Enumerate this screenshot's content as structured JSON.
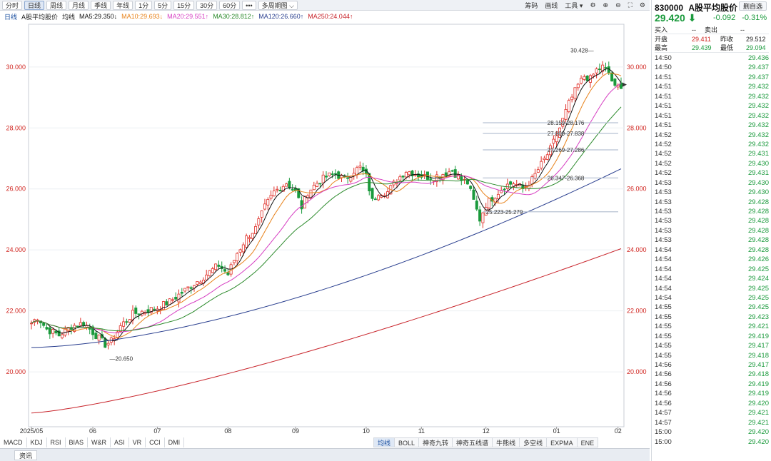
{
  "toolbar": {
    "periods": [
      "分时",
      "日线",
      "周线",
      "月线",
      "季线",
      "年线",
      "1分",
      "5分",
      "15分",
      "30分",
      "60分",
      "•••",
      "多周期图 ⌵"
    ],
    "active_index": 1,
    "right_items": [
      "筹码",
      "画线",
      "工具 ▾"
    ]
  },
  "ma_line": {
    "period": "日线",
    "name": "A股平均股价",
    "avg": "均线",
    "items": [
      {
        "text": "MA5:29.350",
        "color": "#111111",
        "arrow": "down"
      },
      {
        "text": "MA10:29.693",
        "color": "#e8821a",
        "arrow": "down"
      },
      {
        "text": "MA20:29.551",
        "color": "#d63ec2",
        "arrow": "up"
      },
      {
        "text": "MA30:28.812",
        "color": "#2b8a2b",
        "arrow": "up"
      },
      {
        "text": "MA120:26.660",
        "color": "#2a3f8f",
        "arrow": "up"
      },
      {
        "text": "MA250:24.044",
        "color": "#c8232a",
        "arrow": "up"
      }
    ]
  },
  "chart_data": {
    "type": "candlestick",
    "y_ticks": [
      "30.000",
      "28.000",
      "26.000",
      "24.000",
      "22.000",
      "20.000"
    ],
    "y_values": [
      30,
      28,
      26,
      24,
      22,
      20
    ],
    "ylim": [
      18.2,
      31.4
    ],
    "x_labels": [
      "2025/05",
      "06",
      "07",
      "08",
      "09",
      "10",
      "11",
      "12",
      "01",
      "02"
    ],
    "x_label_index": [
      0,
      20,
      41,
      64,
      86,
      109,
      127,
      148,
      171,
      191
    ],
    "annotations": [
      {
        "text": "30.428",
        "index": 184,
        "value": 30.428,
        "type": "high"
      },
      {
        "text": "20.650",
        "index": 25,
        "value": 20.65,
        "type": "low"
      },
      {
        "text": "28.159-28.176",
        "value": 28.17
      },
      {
        "text": "27.809-27.838",
        "value": 27.82
      },
      {
        "text": "27.269-27.286",
        "value": 27.28
      },
      {
        "text": "26.347-26.368",
        "value": 26.36
      },
      {
        "text": "25.223-25.279",
        "value": 25.25
      }
    ],
    "anchors": [
      [
        0,
        21.6
      ],
      [
        2,
        21.8
      ],
      [
        5,
        21.4
      ],
      [
        9,
        21.2
      ],
      [
        13,
        21.5
      ],
      [
        17,
        21.6
      ],
      [
        20,
        21.3
      ],
      [
        24,
        20.9
      ],
      [
        26,
        21.0
      ],
      [
        29,
        21.5
      ],
      [
        33,
        21.9
      ],
      [
        37,
        22.0
      ],
      [
        41,
        22.1
      ],
      [
        45,
        22.3
      ],
      [
        49,
        22.6
      ],
      [
        53,
        22.9
      ],
      [
        57,
        23.2
      ],
      [
        61,
        23.5
      ],
      [
        64,
        23.2
      ],
      [
        67,
        23.9
      ],
      [
        70,
        24.4
      ],
      [
        73,
        24.7
      ],
      [
        76,
        25.4
      ],
      [
        79,
        25.9
      ],
      [
        83,
        26.2
      ],
      [
        86,
        25.9
      ],
      [
        88,
        25.4
      ],
      [
        90,
        25.9
      ],
      [
        93,
        26.2
      ],
      [
        96,
        26.4
      ],
      [
        99,
        26.5
      ],
      [
        102,
        26.3
      ],
      [
        105,
        26.6
      ],
      [
        107,
        26.7
      ],
      [
        109,
        26.4
      ],
      [
        111,
        25.6
      ],
      [
        113,
        25.9
      ],
      [
        116,
        25.9
      ],
      [
        119,
        26.3
      ],
      [
        122,
        26.6
      ],
      [
        125,
        26.5
      ],
      [
        128,
        26.4
      ],
      [
        131,
        26.4
      ],
      [
        134,
        26.5
      ],
      [
        137,
        26.6
      ],
      [
        140,
        26.3
      ],
      [
        142,
        26.2
      ],
      [
        144,
        25.6
      ],
      [
        146,
        25.0
      ],
      [
        148,
        25.5
      ],
      [
        151,
        25.8
      ],
      [
        154,
        26.1
      ],
      [
        157,
        26.2
      ],
      [
        160,
        26.0
      ],
      [
        163,
        26.3
      ],
      [
        166,
        26.8
      ],
      [
        169,
        27.3
      ],
      [
        172,
        28.0
      ],
      [
        175,
        28.8
      ],
      [
        178,
        29.4
      ],
      [
        180,
        29.7
      ],
      [
        182,
        29.6
      ],
      [
        184,
        29.9
      ],
      [
        186,
        30.0
      ],
      [
        188,
        29.8
      ],
      [
        190,
        29.3
      ],
      [
        192,
        29.4
      ]
    ],
    "n_candles": 193
  },
  "sidebar": {
    "code": "830000",
    "name": "A股平均股价",
    "add_fav": "删自选",
    "price": "29.420",
    "change": "-0.092",
    "change_pct": "-0.31%",
    "buy_label": "买入",
    "buy_val": "--",
    "sell_label": "卖出",
    "sell_val": "--",
    "open_label": "开盘",
    "open": "29.411",
    "prev_label": "昨收",
    "prev": "29.512",
    "high_label": "最高",
    "high": "29.439",
    "low_label": "最低",
    "low": "29.094",
    "ticks": [
      [
        "14:50",
        "29.436"
      ],
      [
        "14:50",
        "29.437"
      ],
      [
        "14:51",
        "29.437"
      ],
      [
        "14:51",
        "29.432"
      ],
      [
        "14:51",
        "29.432"
      ],
      [
        "14:51",
        "29.432"
      ],
      [
        "14:51",
        "29.432"
      ],
      [
        "14:51",
        "29.432"
      ],
      [
        "14:52",
        "29.432"
      ],
      [
        "14:52",
        "29.432"
      ],
      [
        "14:52",
        "29.431"
      ],
      [
        "14:52",
        "29.430"
      ],
      [
        "14:52",
        "29.431"
      ],
      [
        "14:53",
        "29.430"
      ],
      [
        "14:53",
        "29.430"
      ],
      [
        "14:53",
        "29.428"
      ],
      [
        "14:53",
        "29.428"
      ],
      [
        "14:53",
        "29.428"
      ],
      [
        "14:53",
        "29.428"
      ],
      [
        "14:53",
        "29.428"
      ],
      [
        "14:54",
        "29.428"
      ],
      [
        "14:54",
        "29.426"
      ],
      [
        "14:54",
        "29.425"
      ],
      [
        "14:54",
        "29.424"
      ],
      [
        "14:54",
        "29.425"
      ],
      [
        "14:54",
        "29.425"
      ],
      [
        "14:55",
        "29.425"
      ],
      [
        "14:55",
        "29.423"
      ],
      [
        "14:55",
        "29.421"
      ],
      [
        "14:55",
        "29.419"
      ],
      [
        "14:55",
        "29.417"
      ],
      [
        "14:55",
        "29.418"
      ],
      [
        "14:56",
        "29.417"
      ],
      [
        "14:56",
        "29.418"
      ],
      [
        "14:56",
        "29.419"
      ],
      [
        "14:56",
        "29.419"
      ],
      [
        "14:56",
        "29.420"
      ],
      [
        "14:57",
        "29.421"
      ],
      [
        "14:57",
        "29.421"
      ],
      [
        "15:00",
        "29.420"
      ],
      [
        "15:00",
        "29.420"
      ]
    ]
  },
  "indicators": {
    "left": [
      "MACD",
      "KDJ",
      "RSI",
      "BIAS",
      "W&R",
      "ASI",
      "VR",
      "CCI",
      "DMI"
    ],
    "right": [
      "均线",
      "BOLL",
      "神奇九转",
      "神奇五线谱",
      "牛熊线",
      "多空线",
      "EXPMA",
      "ENE"
    ],
    "right_active": 0
  },
  "infobar": {
    "tab": "资讯"
  }
}
